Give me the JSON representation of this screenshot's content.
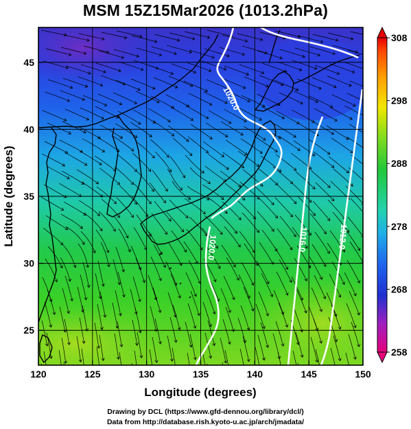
{
  "title": "MSM 15Z15Mar2026 (1013.2hPa)",
  "map": {
    "xlabel": "Longitude (degrees)",
    "ylabel": "Latitude  (degrees)",
    "x_ticks": [
      "120",
      "125",
      "130",
      "135",
      "140",
      "145",
      "150"
    ],
    "y_ticks": [
      "25",
      "30",
      "35",
      "40",
      "45"
    ],
    "x_range": [
      120,
      150
    ],
    "y_range": [
      22.4,
      47.6
    ],
    "isobars": [
      {
        "label": "1020.0",
        "lon": 137.6,
        "lat": 42.2,
        "angle": 62
      },
      {
        "label": "1020.0",
        "lon": 135.8,
        "lat": 31.2,
        "angle": 95
      },
      {
        "label": "1016.0",
        "lon": 144.2,
        "lat": 31.8,
        "angle": 95
      },
      {
        "label": "1012.0",
        "lon": 147.9,
        "lat": 32.0,
        "angle": 95
      }
    ],
    "colors": {
      "land_outline": "#000000",
      "isobar": "#ffffff",
      "streamline": "#000000"
    }
  },
  "colorbar": {
    "labels": [
      "308",
      "298",
      "288",
      "278",
      "268",
      "258"
    ],
    "min": 258,
    "max": 308,
    "stops": [
      "#e6007a",
      "#a020c0",
      "#2030d0",
      "#1e66ee",
      "#1fb0e8",
      "#23d3b0",
      "#22c83a",
      "#7edc1e",
      "#f2e600",
      "#ff9a00",
      "#ff4500",
      "#e60000"
    ]
  },
  "credits": {
    "line1": "Drawing by DCL (https://www.gfd-dennou.org/library/dcl/)",
    "line2": "Data from http://database.rish.kyoto-u.ac.jp/arch/jmadata/"
  }
}
